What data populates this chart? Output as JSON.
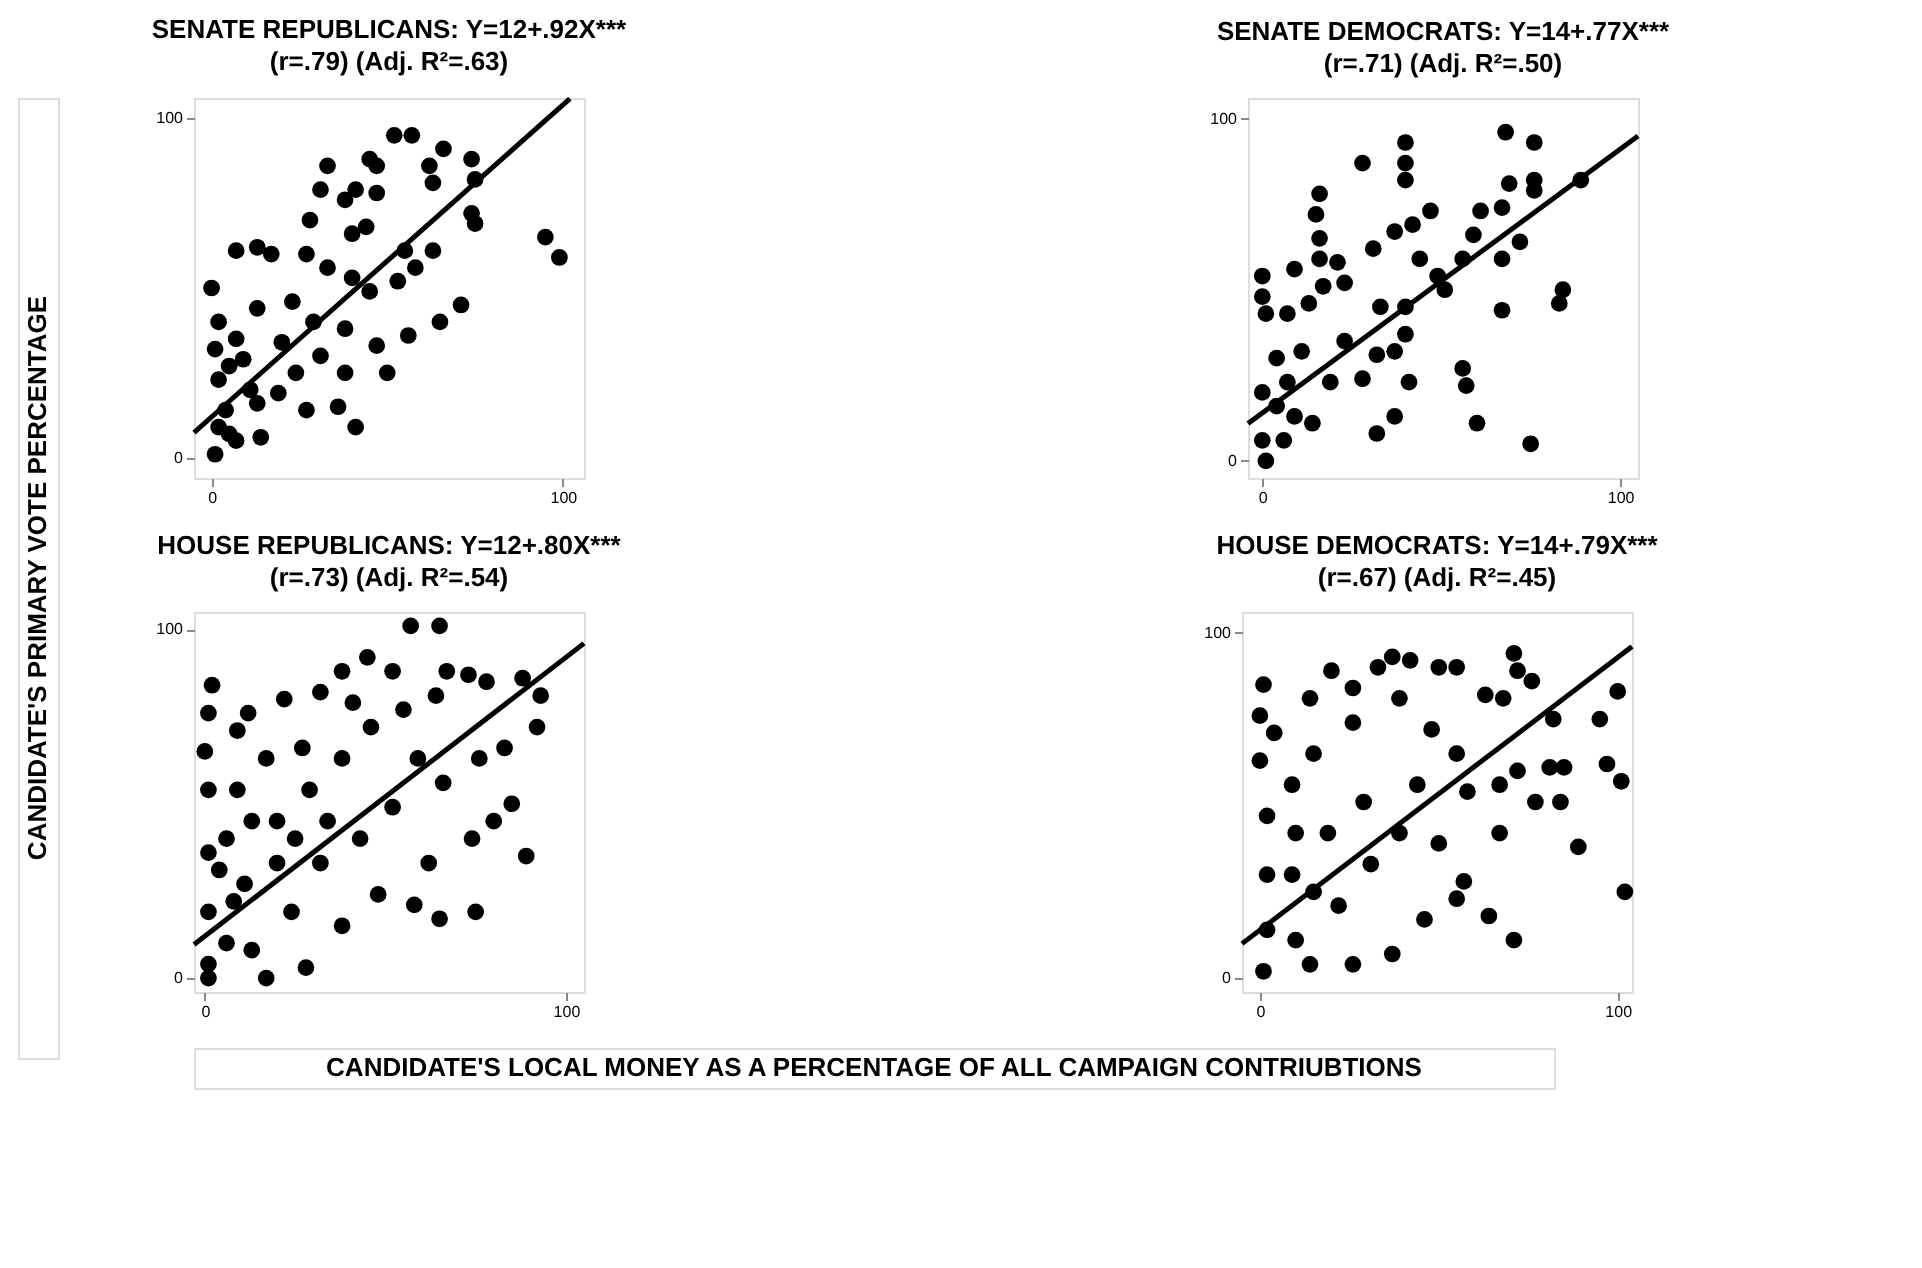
{
  "chart_data": [
    {
      "type": "scatter",
      "title": "SENATE REPUBLICANS: Y=12+.92X***",
      "subtitle": "(r=.79) (Adj. R²=.63)",
      "ylabel": "CANDIDATE'S PRIMARY VOTE PERCENTAGE",
      "xlim": [
        -5,
        106
      ],
      "ylim": [
        -6,
        106
      ],
      "xticks": [
        0,
        100
      ],
      "yticks": [
        0,
        100
      ],
      "grid": false,
      "series": [
        {
          "type": "scatter",
          "marker": "circle",
          "color": "#000000",
          "x": [
            52,
            57,
            66,
            74,
            62,
            45,
            47,
            33,
            63,
            75,
            31,
            38,
            41,
            47,
            28,
            44,
            74,
            75,
            95,
            99,
            7,
            13,
            17,
            27,
            40,
            55,
            63,
            58,
            53,
            0,
            2,
            13,
            23,
            33,
            40,
            45,
            71,
            65,
            56,
            47,
            38,
            29,
            20,
            7,
            50,
            38,
            31,
            24,
            19,
            27,
            36,
            41,
            13,
            1,
            2,
            4,
            5,
            1,
            7,
            2,
            11,
            5,
            14,
            9
          ],
          "values": [
            95,
            95,
            91,
            88,
            86,
            88,
            86,
            86,
            81,
            82,
            79,
            76,
            79,
            78,
            70,
            68,
            72,
            69,
            65,
            59,
            61,
            62,
            60,
            60,
            66,
            61,
            61,
            56,
            52,
            50,
            40,
            44,
            46,
            56,
            53,
            49,
            45,
            40,
            36,
            33,
            38,
            40,
            34,
            35,
            25,
            25,
            30,
            25,
            19,
            14,
            15,
            9,
            16,
            32,
            23,
            14,
            7,
            1,
            5,
            9,
            20,
            27,
            6,
            29
          ]
        },
        {
          "type": "line",
          "color": "#000000",
          "line_style": "solid",
          "x": [
            -5,
            102
          ],
          "values": [
            7.4,
            105.8
          ]
        }
      ]
    },
    {
      "type": "scatter",
      "title": "SENATE DEMOCRATS: Y=14+.77X***",
      "subtitle": "(r=.71) (Adj. R²=.50)",
      "xlim": [
        -4,
        105
      ],
      "ylim": [
        -5,
        106
      ],
      "xticks": [
        0,
        100
      ],
      "yticks": [
        0,
        100
      ],
      "grid": false,
      "series": [
        {
          "type": "scatter",
          "marker": "circle",
          "color": "#000000",
          "x": [
            68,
            76,
            40,
            40,
            40,
            28,
            16,
            15,
            16,
            16,
            21,
            9,
            0,
            0,
            1,
            7,
            13,
            23,
            17,
            31,
            37,
            42,
            47,
            44,
            33,
            40,
            49,
            51,
            56,
            59,
            61,
            67,
            69,
            76,
            76,
            72,
            89,
            84,
            83,
            67,
            67,
            40,
            32,
            37,
            41,
            28,
            19,
            23,
            11,
            4,
            56,
            57,
            37,
            32,
            60,
            75,
            0,
            4,
            9,
            0,
            1,
            6,
            14,
            7
          ],
          "values": [
            96,
            93,
            93,
            87,
            82,
            87,
            78,
            72,
            65,
            59,
            58,
            56,
            54,
            48,
            43,
            43,
            46,
            52,
            51,
            62,
            67,
            69,
            73,
            59,
            45,
            45,
            54,
            50,
            59,
            66,
            73,
            74,
            81,
            82,
            79,
            64,
            82,
            50,
            46,
            44,
            59,
            37,
            31,
            32,
            23,
            24,
            23,
            35,
            32,
            30,
            27,
            22,
            13,
            8,
            11,
            5,
            20,
            16,
            13,
            6,
            0,
            6,
            11,
            23
          ]
        },
        {
          "type": "line",
          "color": "#000000",
          "line_style": "solid",
          "x": [
            -4,
            105
          ],
          "values": [
            10.9,
            94.9
          ]
        }
      ]
    },
    {
      "type": "scatter",
      "title": "HOUSE REPUBLICANS: Y=12+.80X***",
      "subtitle": "(r=.73) (Adj. R²=.54)",
      "xlabel": "CANDIDATE'S LOCAL MONEY AS A PERCENTAGE OF ALL CAMPAIGN CONTRIUBTIONS",
      "xlim": [
        -3,
        105
      ],
      "ylim": [
        -4,
        105
      ],
      "xticks": [
        0,
        100
      ],
      "yticks": [
        0,
        100
      ],
      "grid": false,
      "series": [
        {
          "type": "scatter",
          "marker": "circle",
          "color": "#000000",
          "x": [
            57,
            65,
            45,
            52,
            38,
            2,
            1,
            0,
            9,
            12,
            22,
            32,
            67,
            73,
            78,
            88,
            93,
            92,
            83,
            76,
            85,
            89,
            80,
            74,
            75,
            65,
            58,
            62,
            48,
            38,
            28,
            17,
            1,
            1,
            1,
            1,
            1,
            6,
            11,
            20,
            29,
            38,
            46,
            55,
            59,
            52,
            43,
            32,
            24,
            13,
            6,
            9,
            17,
            27,
            41,
            64,
            66,
            34,
            20,
            8,
            4,
            13,
            25
          ],
          "values": [
            101,
            101,
            92,
            88,
            88,
            84,
            76,
            65,
            71,
            76,
            80,
            82,
            88,
            87,
            85,
            86,
            81,
            72,
            66,
            63,
            50,
            35,
            45,
            40,
            19,
            17,
            21,
            33,
            24,
            15,
            3,
            0,
            0,
            54,
            36,
            19,
            4,
            10,
            27,
            45,
            54,
            63,
            72,
            77,
            63,
            49,
            40,
            33,
            19,
            8,
            40,
            54,
            63,
            66,
            79,
            81,
            56,
            45,
            33,
            22,
            31,
            45,
            40
          ]
        },
        {
          "type": "line",
          "color": "#000000",
          "line_style": "solid",
          "x": [
            -3,
            105
          ],
          "values": [
            9.6,
            96
          ]
        }
      ]
    },
    {
      "type": "scatter",
      "title": "HOUSE DEMOCRATS: Y=14+.79X***",
      "subtitle": "(r=.67) (Adj. R²=.45)",
      "xlim": [
        -5,
        104
      ],
      "ylim": [
        -4,
        106
      ],
      "xticks": [
        0,
        100
      ],
      "yticks": [
        0,
        100
      ],
      "grid": false,
      "series": [
        {
          "type": "scatter",
          "marker": "circle",
          "color": "#000000",
          "x": [
            37,
            42,
            33,
            50,
            55,
            71,
            72,
            76,
            1,
            0,
            4,
            0,
            14,
            20,
            26,
            63,
            68,
            82,
            95,
            100,
            97,
            101,
            102,
            81,
            85,
            84,
            89,
            77,
            72,
            67,
            67,
            58,
            57,
            64,
            71,
            55,
            46,
            37,
            26,
            14,
            1,
            2,
            2,
            2,
            9,
            15,
            26,
            39,
            48,
            55,
            44,
            39,
            31,
            22,
            10,
            9,
            19,
            29,
            50,
            10,
            15
          ],
          "values": [
            93,
            92,
            90,
            90,
            90,
            94,
            89,
            86,
            85,
            76,
            71,
            63,
            81,
            89,
            84,
            82,
            81,
            75,
            75,
            83,
            62,
            57,
            25,
            61,
            61,
            51,
            38,
            51,
            60,
            56,
            42,
            54,
            28,
            18,
            11,
            23,
            17,
            7,
            4,
            4,
            2,
            14,
            30,
            47,
            56,
            65,
            74,
            81,
            72,
            65,
            56,
            42,
            33,
            21,
            11,
            30,
            42,
            51,
            39,
            42,
            25
          ]
        },
        {
          "type": "line",
          "color": "#000000",
          "line_style": "solid",
          "x": [
            -5,
            104
          ],
          "values": [
            10,
            96
          ]
        }
      ]
    }
  ]
}
